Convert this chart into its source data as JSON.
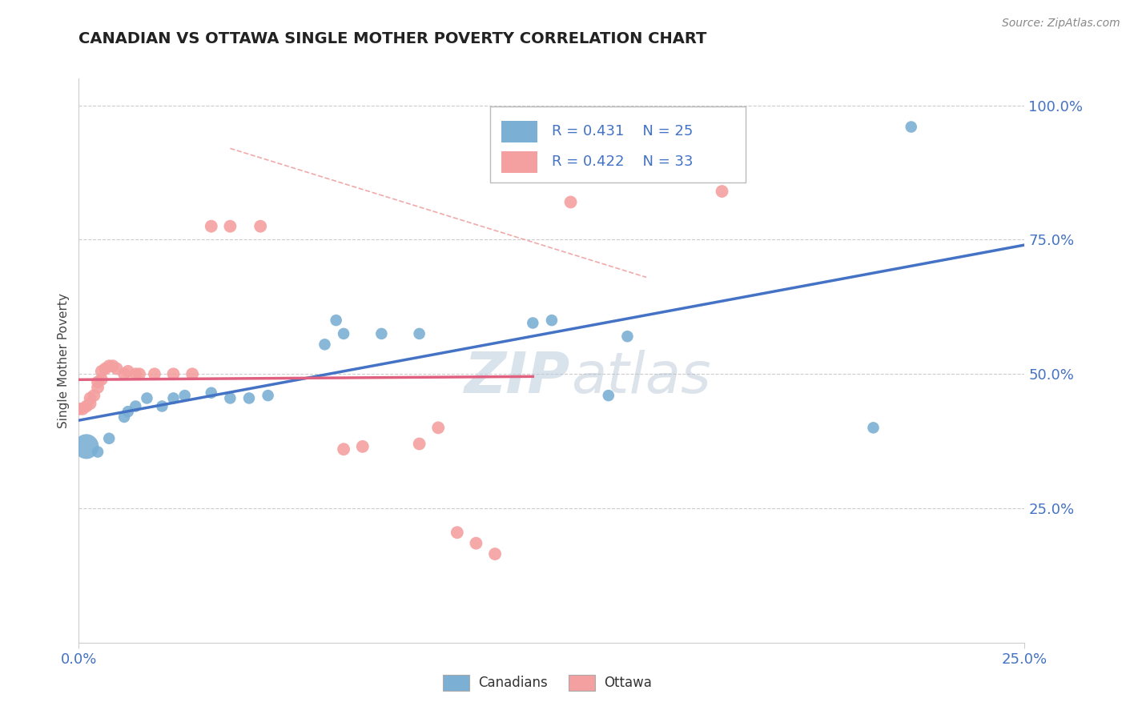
{
  "title": "CANADIAN VS OTTAWA SINGLE MOTHER POVERTY CORRELATION CHART",
  "source": "Source: ZipAtlas.com",
  "ylabel": "Single Mother Poverty",
  "xlim": [
    0.0,
    0.25
  ],
  "ylim": [
    0.0,
    1.05
  ],
  "blue_color": "#7BAFD4",
  "pink_color": "#F4A0A0",
  "blue_line_color": "#4472C4",
  "pink_line_color": "#E06080",
  "blue_scatter": [
    [
      0.002,
      0.365
    ],
    [
      0.005,
      0.355
    ],
    [
      0.008,
      0.38
    ],
    [
      0.012,
      0.42
    ],
    [
      0.013,
      0.43
    ],
    [
      0.015,
      0.44
    ],
    [
      0.018,
      0.455
    ],
    [
      0.022,
      0.44
    ],
    [
      0.025,
      0.455
    ],
    [
      0.028,
      0.46
    ],
    [
      0.035,
      0.465
    ],
    [
      0.04,
      0.455
    ],
    [
      0.045,
      0.455
    ],
    [
      0.05,
      0.46
    ],
    [
      0.065,
      0.555
    ],
    [
      0.068,
      0.6
    ],
    [
      0.07,
      0.575
    ],
    [
      0.08,
      0.575
    ],
    [
      0.09,
      0.575
    ],
    [
      0.12,
      0.595
    ],
    [
      0.125,
      0.6
    ],
    [
      0.145,
      0.57
    ],
    [
      0.14,
      0.46
    ],
    [
      0.21,
      0.4
    ],
    [
      0.22,
      0.96
    ]
  ],
  "blue_scatter_sizes": [
    500,
    80,
    80,
    80,
    80,
    80,
    80,
    80,
    80,
    80,
    80,
    80,
    80,
    80,
    80,
    80,
    80,
    80,
    80,
    80,
    80,
    80,
    80,
    80,
    80
  ],
  "pink_scatter": [
    [
      0.0,
      0.435
    ],
    [
      0.001,
      0.435
    ],
    [
      0.002,
      0.44
    ],
    [
      0.003,
      0.445
    ],
    [
      0.003,
      0.455
    ],
    [
      0.004,
      0.46
    ],
    [
      0.005,
      0.475
    ],
    [
      0.005,
      0.485
    ],
    [
      0.006,
      0.49
    ],
    [
      0.006,
      0.505
    ],
    [
      0.007,
      0.51
    ],
    [
      0.008,
      0.515
    ],
    [
      0.009,
      0.515
    ],
    [
      0.01,
      0.51
    ],
    [
      0.012,
      0.5
    ],
    [
      0.013,
      0.505
    ],
    [
      0.015,
      0.5
    ],
    [
      0.016,
      0.5
    ],
    [
      0.02,
      0.5
    ],
    [
      0.025,
      0.5
    ],
    [
      0.03,
      0.5
    ],
    [
      0.035,
      0.775
    ],
    [
      0.04,
      0.775
    ],
    [
      0.048,
      0.775
    ],
    [
      0.07,
      0.36
    ],
    [
      0.075,
      0.365
    ],
    [
      0.09,
      0.37
    ],
    [
      0.095,
      0.4
    ],
    [
      0.1,
      0.205
    ],
    [
      0.105,
      0.185
    ],
    [
      0.11,
      0.165
    ],
    [
      0.13,
      0.82
    ],
    [
      0.17,
      0.84
    ]
  ],
  "watermark_zip": "ZIP",
  "watermark_atlas": "atlas",
  "grid_color": "#CCCCCC",
  "background_color": "#FFFFFF",
  "ref_line_color": "#F0AAAA",
  "legend_r_blue": "R = 0.431",
  "legend_n_blue": "N = 25",
  "legend_r_pink": "R = 0.422",
  "legend_n_pink": "N = 33"
}
